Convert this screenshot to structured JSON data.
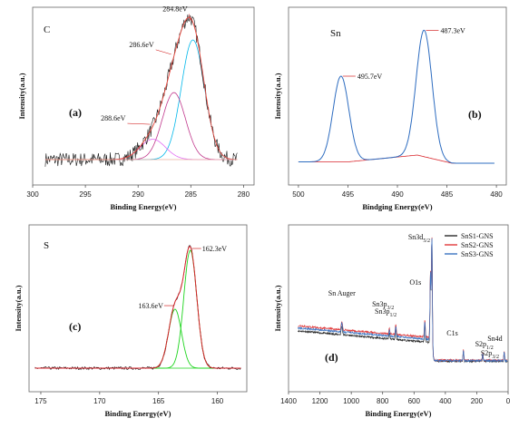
{
  "chart_data": [
    {
      "panel": "a",
      "type": "line",
      "element": "C",
      "panel_label": "(a)",
      "xlabel": "Binding Energy(eV)",
      "ylabel": "Intensity(a.u.)",
      "xlim": [
        300,
        279
      ],
      "x_reversed": true,
      "xticks": [
        "300",
        "295",
        "290",
        "285",
        "280"
      ],
      "peaks": [
        {
          "label": "284.8eV",
          "x": 284.8,
          "height": 1.0,
          "width": 1.1,
          "color": "#00b7ea"
        },
        {
          "label": "286.6eV",
          "x": 286.6,
          "height": 0.56,
          "width": 1.1,
          "color": "#c0388c"
        },
        {
          "label": "288.6eV",
          "x": 288.6,
          "height": 0.17,
          "width": 1.2,
          "color": "#e26cf3"
        }
      ],
      "envelope_color": "#e8453a",
      "raw_color": "#111111"
    },
    {
      "panel": "b",
      "type": "line",
      "element": "Sn",
      "panel_label": "(b)",
      "xlabel": "Bindging Energy(eV)",
      "ylabel": "Intensity(a.u.)",
      "xlim": [
        501,
        479
      ],
      "x_reversed": true,
      "xticks": [
        "500",
        "495",
        "490",
        "485",
        "480"
      ],
      "peaks": [
        {
          "label": "495.7eV",
          "x": 495.7,
          "height": 0.63,
          "width": 0.8
        },
        {
          "label": "487.3eV",
          "x": 487.3,
          "height": 0.93,
          "width": 0.8
        }
      ],
      "line_color": "#2d6cc0",
      "background_color": "#d9262c"
    },
    {
      "panel": "c",
      "type": "line",
      "element": "S",
      "panel_label": "(c)",
      "xlabel": "Binding Energy(eV)",
      "ylabel": "Intensity(a.u.)",
      "xlim": [
        176,
        157.5
      ],
      "x_reversed": true,
      "xticks": [
        "175",
        "170",
        "165",
        "160"
      ],
      "peaks": [
        {
          "label": "162.3eV",
          "x": 162.3,
          "height": 1.0,
          "width": 0.55
        },
        {
          "label": "163.6eV",
          "x": 163.6,
          "height": 0.5,
          "width": 0.55
        }
      ],
      "component_color": "#1ed51e",
      "envelope_color": "#d9262c",
      "raw_color": "#111111"
    },
    {
      "panel": "d",
      "type": "line",
      "panel_label": "(d)",
      "xlabel": "Binding Energy(eV)",
      "ylabel": "Intensity(a.u.)",
      "xlim": [
        1400,
        0
      ],
      "x_reversed": true,
      "xticks": [
        "1400",
        "1200",
        "1000",
        "800",
        "600",
        "400",
        "200",
        "0"
      ],
      "series": [
        {
          "name": "SnS1-GNS",
          "sub": "1",
          "color": "#2b2b2b",
          "offset": 0
        },
        {
          "name": "SnS2-GNS",
          "sub": "2",
          "color": "#e0393a",
          "offset": 0.035
        },
        {
          "name": "SnS3-GNS",
          "sub": "3",
          "color": "#3a73c2",
          "offset": 0.02
        }
      ],
      "annotations": [
        {
          "main": "Sn3d",
          "sub": "5/2",
          "x": 486
        },
        {
          "main": "O1s",
          "sub": "",
          "x": 531
        },
        {
          "main": "Sn3p",
          "sub": "3/2",
          "x": 716
        },
        {
          "main": "Sn3p",
          "sub": "1/2",
          "x": 757
        },
        {
          "main": "Sn Auger",
          "sub": "",
          "x": 1060
        },
        {
          "main": "C1s",
          "sub": "",
          "x": 285
        },
        {
          "main": "S2p",
          "sub": "1/2",
          "x": 164
        },
        {
          "main": "S2p",
          "sub": "3/2",
          "x": 162
        },
        {
          "main": "Sn4d",
          "sub": "",
          "x": 25
        }
      ]
    }
  ]
}
